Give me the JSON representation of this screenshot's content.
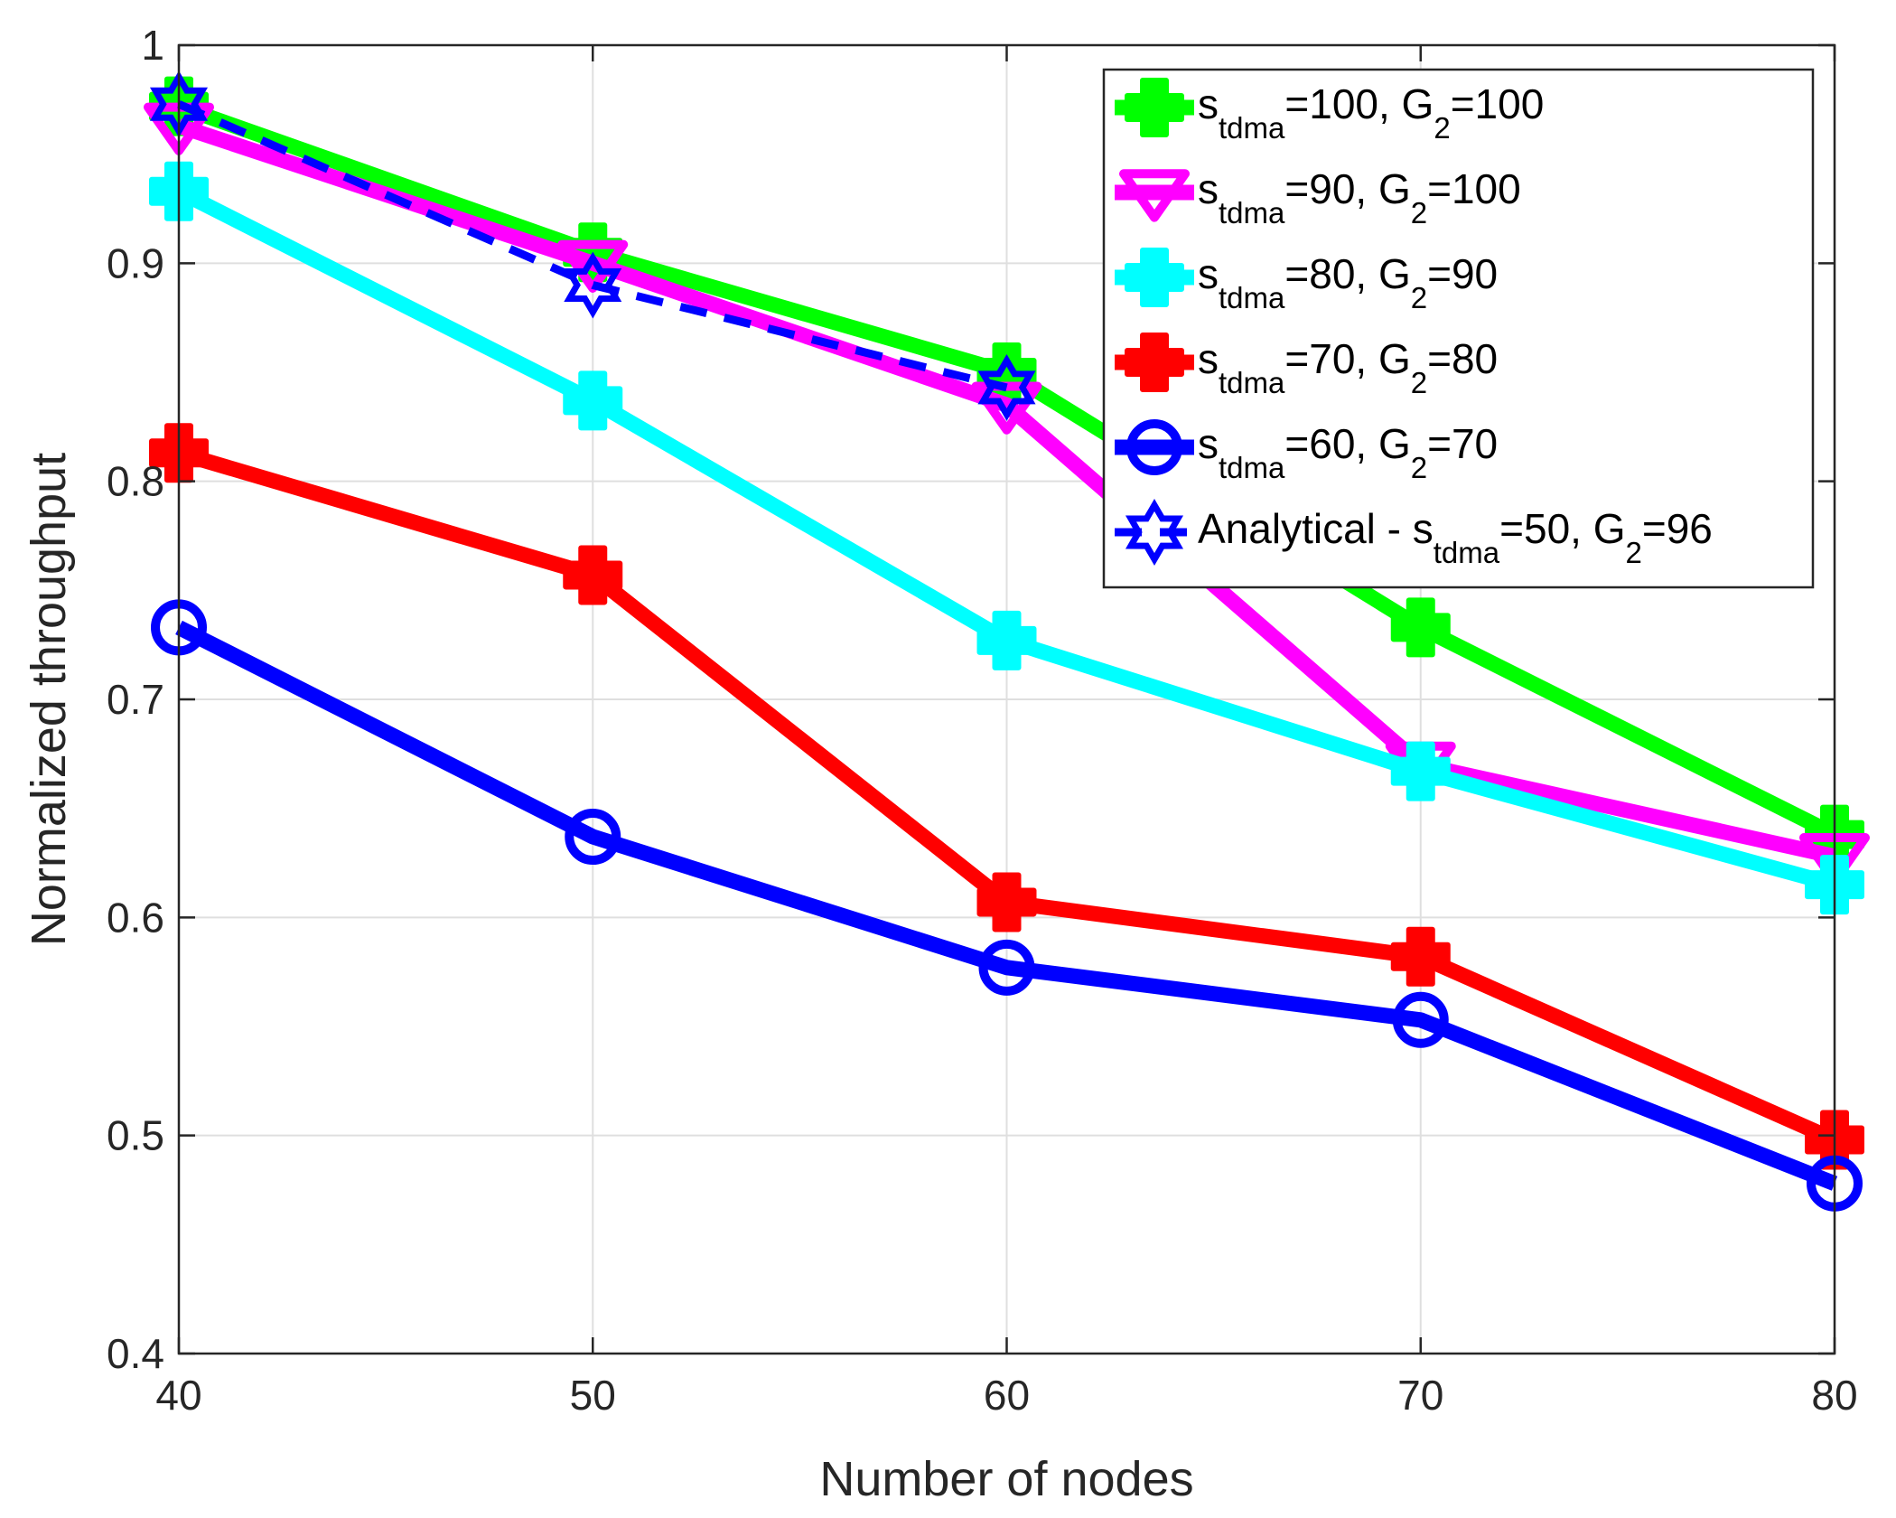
{
  "chart_data": {
    "type": "line",
    "title": "",
    "xlabel": "Number of nodes",
    "ylabel": "Normalized throughput",
    "x": [
      40,
      50,
      60,
      70,
      80
    ],
    "xlim": [
      40,
      80
    ],
    "ylim": [
      0.4,
      1.0
    ],
    "xticks": [
      40,
      50,
      60,
      70,
      80
    ],
    "yticks": [
      0.4,
      0.5,
      0.6,
      0.7,
      0.8,
      0.9,
      1.0
    ],
    "xtick_labels": [
      "40",
      "50",
      "60",
      "70",
      "80"
    ],
    "ytick_labels": [
      "0.4",
      "0.5",
      "0.6",
      "0.7",
      "0.8",
      "0.9",
      "1"
    ],
    "grid": true,
    "legend_position": "top-right",
    "series": [
      {
        "name": "s_tdma=100, G_2=100",
        "legend": {
          "pre": "s",
          "sub1": "tdma",
          "mid": "=100, G",
          "sub2": "2",
          "post": "=100"
        },
        "color": "#00ff00",
        "marker": "cross",
        "line_style": "solid",
        "values": [
          0.972,
          0.905,
          0.85,
          0.733,
          0.638
        ]
      },
      {
        "name": "s_tdma=90, G_2=100",
        "legend": {
          "pre": "s",
          "sub1": "tdma",
          "mid": "=90, G",
          "sub2": "2",
          "post": "=100"
        },
        "color": "#ff00ff",
        "marker": "triangle-down",
        "line_style": "solid",
        "values": [
          0.963,
          0.9,
          0.835,
          0.67,
          0.628
        ]
      },
      {
        "name": "s_tdma=80, G_2=90",
        "legend": {
          "pre": "s",
          "sub1": "tdma",
          "mid": "=80, G",
          "sub2": "2",
          "post": "=90"
        },
        "color": "#00ffff",
        "marker": "cross",
        "line_style": "solid",
        "values": [
          0.933,
          0.837,
          0.727,
          0.667,
          0.615
        ]
      },
      {
        "name": "s_tdma=70, G_2=80",
        "legend": {
          "pre": "s",
          "sub1": "tdma",
          "mid": "=70, G",
          "sub2": "2",
          "post": "=80"
        },
        "color": "#ff0000",
        "marker": "cross",
        "line_style": "solid",
        "values": [
          0.813,
          0.757,
          0.607,
          0.582,
          0.498
        ]
      },
      {
        "name": "s_tdma=60, G_2=70",
        "legend": {
          "pre": "s",
          "sub1": "tdma",
          "mid": "=60, G",
          "sub2": "2",
          "post": "=70"
        },
        "color": "#0000ff",
        "marker": "circle",
        "line_style": "solid",
        "values": [
          0.733,
          0.637,
          0.577,
          0.553,
          0.478
        ]
      },
      {
        "name": "Analytical - s_tdma=50, G_2=96",
        "legend": {
          "pre": "Analytical - s",
          "sub1": "tdma",
          "mid": "=50, G",
          "sub2": "2",
          "post": "=96"
        },
        "color": "#0000ff",
        "marker": "hexagram",
        "line_style": "dashed",
        "x": [
          40,
          50,
          60
        ],
        "values": [
          0.973,
          0.89,
          0.843
        ]
      }
    ]
  }
}
